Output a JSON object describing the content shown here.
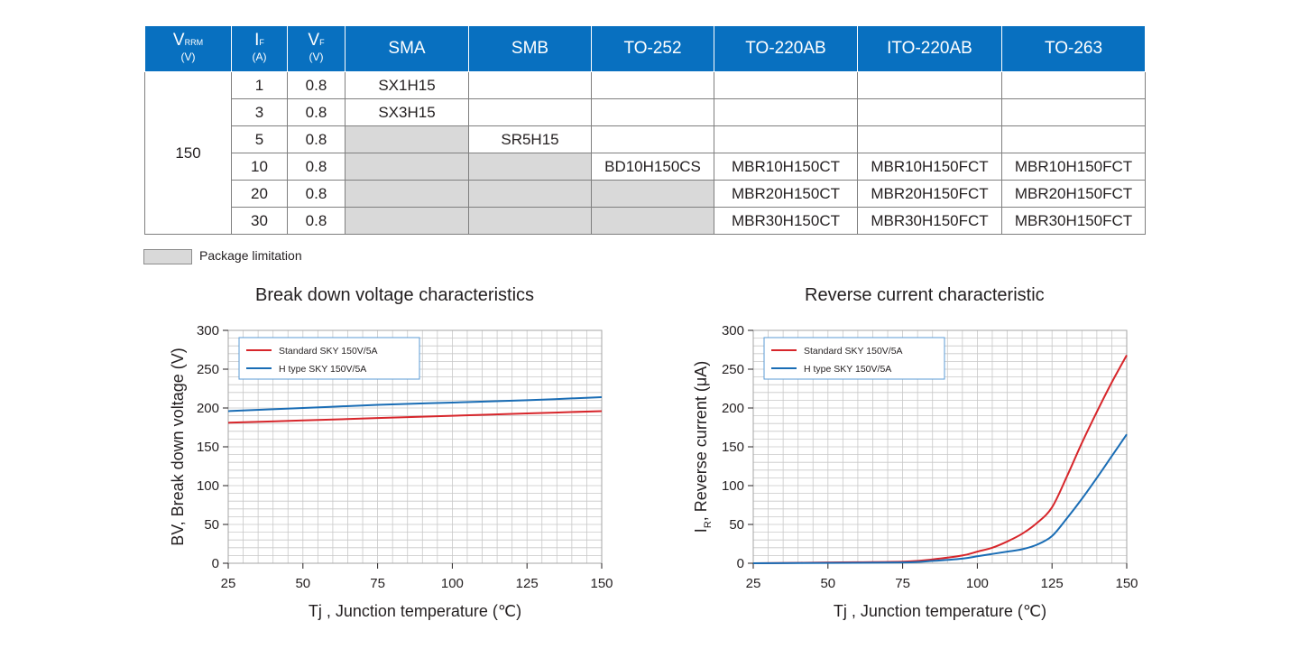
{
  "table": {
    "headers": {
      "vrrm": {
        "main": "V",
        "sub": "RRM",
        "unit": "(V)"
      },
      "if": {
        "main": "I",
        "sub": "F",
        "unit": "(A)"
      },
      "vf": {
        "main": "V",
        "sub": "F",
        "unit": "(V)"
      },
      "packages": [
        "SMA",
        "SMB",
        "TO-252",
        "TO-220AB",
        "ITO-220AB",
        "TO-263"
      ]
    },
    "vrrm_value": "150",
    "rows": [
      {
        "if": "1",
        "vf": "0.8",
        "cells": [
          "SX1H15",
          "",
          "",
          "",
          "",
          ""
        ],
        "limited": [
          false,
          false,
          false,
          false,
          false,
          false
        ]
      },
      {
        "if": "3",
        "vf": "0.8",
        "cells": [
          "SX3H15",
          "",
          "",
          "",
          "",
          ""
        ],
        "limited": [
          false,
          false,
          false,
          false,
          false,
          false
        ]
      },
      {
        "if": "5",
        "vf": "0.8",
        "cells": [
          "",
          "SR5H15",
          "",
          "",
          "",
          ""
        ],
        "limited": [
          true,
          false,
          false,
          false,
          false,
          false
        ]
      },
      {
        "if": "10",
        "vf": "0.8",
        "cells": [
          "",
          "",
          "BD10H150CS",
          "MBR10H150CT",
          "MBR10H150FCT",
          "MBR10H150FCT"
        ],
        "limited": [
          true,
          true,
          false,
          false,
          false,
          false
        ]
      },
      {
        "if": "20",
        "vf": "0.8",
        "cells": [
          "",
          "",
          "",
          "MBR20H150CT",
          "MBR20H150FCT",
          "MBR20H150FCT"
        ],
        "limited": [
          true,
          true,
          true,
          false,
          false,
          false
        ]
      },
      {
        "if": "30",
        "vf": "0.8",
        "cells": [
          "",
          "",
          "",
          "MBR30H150CT",
          "MBR30H150FCT",
          "MBR30H150FCT"
        ],
        "limited": [
          true,
          true,
          true,
          false,
          false,
          false
        ]
      }
    ],
    "legend_label": "Package limitation",
    "colors": {
      "header": "#0870c0",
      "limitation": "#d9d9d9"
    }
  },
  "chart_data": [
    {
      "type": "line",
      "title": "Break down voltage characteristics",
      "xlabel": "Tj , Junction temperature (℃)",
      "ylabel": "BV, Break down voltage (V)",
      "xlim": [
        25,
        150
      ],
      "ylim": [
        0,
        300
      ],
      "xticks": [
        25,
        50,
        75,
        100,
        125,
        150
      ],
      "yticks": [
        0,
        50,
        100,
        150,
        200,
        250,
        300
      ],
      "grid": true,
      "legend_position": "top-left",
      "series": [
        {
          "name": "Standard SKY 150V/5A",
          "color": "#d7262b",
          "x": [
            25,
            50,
            75,
            100,
            125,
            150
          ],
          "y": [
            181,
            184,
            187,
            190,
            193,
            196
          ]
        },
        {
          "name": "H type SKY 150V/5A",
          "color": "#1a6db5",
          "x": [
            25,
            50,
            75,
            100,
            125,
            150
          ],
          "y": [
            196,
            200,
            204,
            207,
            210,
            214
          ]
        }
      ]
    },
    {
      "type": "line",
      "title": "Reverse current characteristic",
      "xlabel": "Tj , Junction temperature (℃)",
      "ylabel": {
        "main": "I",
        "sub": "R",
        "rest": ", Reverse current (μA)"
      },
      "xlim": [
        25,
        150
      ],
      "ylim": [
        0,
        300
      ],
      "xticks": [
        25,
        50,
        75,
        100,
        125,
        150
      ],
      "yticks": [
        0,
        50,
        100,
        150,
        200,
        250,
        300
      ],
      "grid": true,
      "legend_position": "top-left",
      "series": [
        {
          "name": "Standard SKY 150V/5A",
          "color": "#d7262b",
          "x": [
            25,
            50,
            75,
            85,
            95,
            100,
            105,
            110,
            115,
            120,
            125,
            130,
            135,
            140,
            145,
            150
          ],
          "y": [
            0,
            1,
            2,
            5,
            10,
            15,
            20,
            28,
            38,
            52,
            72,
            112,
            155,
            195,
            233,
            268
          ]
        },
        {
          "name": "H type SKY 150V/5A",
          "color": "#1a6db5",
          "x": [
            25,
            50,
            75,
            85,
            95,
            100,
            105,
            110,
            115,
            120,
            125,
            130,
            135,
            140,
            145,
            150
          ],
          "y": [
            0,
            0.5,
            1,
            3,
            6,
            9,
            12,
            15,
            18,
            24,
            35,
            58,
            83,
            110,
            138,
            166
          ]
        }
      ]
    }
  ]
}
